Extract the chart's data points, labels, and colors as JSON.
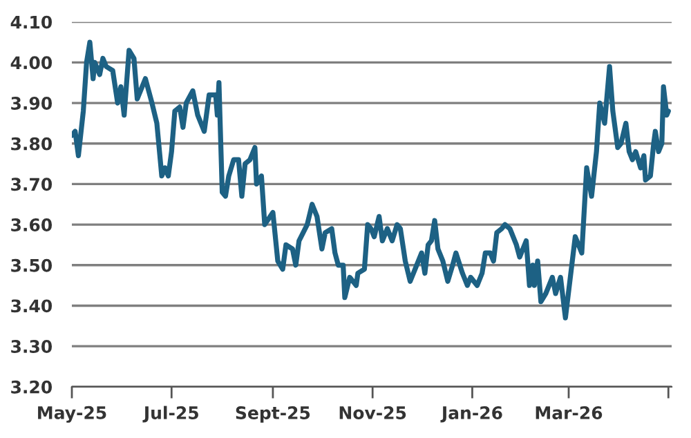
{
  "chart_data": {
    "type": "line",
    "x": [
      "2025-05-01",
      "2025-05-03",
      "2025-05-05",
      "2025-05-08",
      "2025-05-10",
      "2025-05-12",
      "2025-05-14",
      "2025-05-15",
      "2025-05-18",
      "2025-05-20",
      "2025-05-22",
      "2025-05-26",
      "2025-05-29",
      "2025-05-31",
      "2025-06-02",
      "2025-06-05",
      "2025-06-08",
      "2025-06-10",
      "2025-06-15",
      "2025-06-19",
      "2025-06-22",
      "2025-06-25",
      "2025-06-27",
      "2025-06-29",
      "2025-07-01",
      "2025-07-03",
      "2025-07-06",
      "2025-07-08",
      "2025-07-10",
      "2025-07-14",
      "2025-07-17",
      "2025-07-21",
      "2025-07-24",
      "2025-07-28",
      "2025-07-29",
      "2025-07-30",
      "2025-08-01",
      "2025-08-03",
      "2025-08-05",
      "2025-08-08",
      "2025-08-11",
      "2025-08-13",
      "2025-08-15",
      "2025-08-18",
      "2025-08-21",
      "2025-08-22",
      "2025-08-25",
      "2025-08-27",
      "2025-09-01",
      "2025-09-04",
      "2025-09-07",
      "2025-09-09",
      "2025-09-13",
      "2025-09-15",
      "2025-09-17",
      "2025-09-22",
      "2025-09-25",
      "2025-09-28",
      "2025-10-01",
      "2025-10-03",
      "2025-10-07",
      "2025-10-09",
      "2025-10-11",
      "2025-10-14",
      "2025-10-15",
      "2025-10-18",
      "2025-10-22",
      "2025-10-23",
      "2025-10-27",
      "2025-10-29",
      "2025-10-31",
      "2025-11-02",
      "2025-11-05",
      "2025-11-07",
      "2025-11-10",
      "2025-11-13",
      "2025-11-16",
      "2025-11-18",
      "2025-11-21",
      "2025-11-24",
      "2025-11-27",
      "2025-12-01",
      "2025-12-03",
      "2025-12-05",
      "2025-12-07",
      "2025-12-09",
      "2025-12-11",
      "2025-12-14",
      "2025-12-17",
      "2025-12-20",
      "2025-12-22",
      "2025-12-26",
      "2025-12-29",
      "2025-12-31",
      "2026-01-04",
      "2026-01-07",
      "2026-01-09",
      "2026-01-12",
      "2026-01-14",
      "2026-01-16",
      "2026-01-19",
      "2026-01-21",
      "2026-01-24",
      "2026-01-28",
      "2026-01-30",
      "2026-02-03",
      "2026-02-05",
      "2026-02-07",
      "2026-02-08",
      "2026-02-10",
      "2026-02-12",
      "2026-02-15",
      "2026-02-19",
      "2026-02-21",
      "2026-02-24",
      "2026-02-27",
      "2026-03-05",
      "2026-03-09",
      "2026-03-12",
      "2026-03-15",
      "2026-03-18",
      "2026-03-20",
      "2026-03-23",
      "2026-03-26",
      "2026-03-28",
      "2026-03-31",
      "2026-04-02",
      "2026-04-05",
      "2026-04-07",
      "2026-04-09",
      "2026-04-11",
      "2026-04-14",
      "2026-04-16",
      "2026-04-17",
      "2026-04-20",
      "2026-04-22",
      "2026-04-23",
      "2026-04-25",
      "2026-04-27",
      "2026-04-28",
      "2026-04-30",
      "2026-05-01"
    ],
    "series": [
      {
        "color": "#1d6184",
        "values": [
          3.82,
          3.83,
          3.77,
          3.88,
          4.0,
          4.05,
          3.96,
          4.0,
          3.97,
          4.01,
          3.99,
          3.98,
          3.9,
          3.94,
          3.87,
          4.03,
          4.01,
          3.91,
          3.96,
          3.9,
          3.85,
          3.72,
          3.74,
          3.72,
          3.78,
          3.88,
          3.89,
          3.84,
          3.9,
          3.93,
          3.87,
          3.83,
          3.92,
          3.92,
          3.87,
          3.95,
          3.68,
          3.67,
          3.72,
          3.76,
          3.76,
          3.67,
          3.75,
          3.76,
          3.79,
          3.7,
          3.72,
          3.6,
          3.63,
          3.51,
          3.49,
          3.55,
          3.54,
          3.5,
          3.56,
          3.6,
          3.65,
          3.62,
          3.54,
          3.58,
          3.59,
          3.53,
          3.5,
          3.5,
          3.42,
          3.47,
          3.45,
          3.48,
          3.49,
          3.6,
          3.59,
          3.57,
          3.62,
          3.56,
          3.59,
          3.56,
          3.6,
          3.59,
          3.51,
          3.46,
          3.49,
          3.53,
          3.48,
          3.55,
          3.56,
          3.61,
          3.54,
          3.51,
          3.46,
          3.5,
          3.53,
          3.48,
          3.45,
          3.47,
          3.45,
          3.48,
          3.53,
          3.53,
          3.51,
          3.58,
          3.59,
          3.6,
          3.59,
          3.55,
          3.52,
          3.56,
          3.45,
          3.5,
          3.45,
          3.51,
          3.41,
          3.43,
          3.47,
          3.43,
          3.47,
          3.37,
          3.57,
          3.53,
          3.74,
          3.67,
          3.78,
          3.9,
          3.85,
          3.99,
          3.88,
          3.79,
          3.8,
          3.85,
          3.78,
          3.76,
          3.78,
          3.74,
          3.77,
          3.71,
          3.72,
          3.8,
          3.83,
          3.78,
          3.8,
          3.94,
          3.87,
          3.88
        ]
      }
    ],
    "xlim": [
      "2025-05-01",
      "2026-05-03"
    ],
    "xticks": [
      {
        "value": "2025-05-01",
        "label": "May-25"
      },
      {
        "value": "2025-07-01",
        "label": "Jul-25"
      },
      {
        "value": "2025-09-01",
        "label": "Sept-25"
      },
      {
        "value": "2025-11-01",
        "label": "Nov-25"
      },
      {
        "value": "2026-01-01",
        "label": "Jan-26"
      },
      {
        "value": "2026-03-01",
        "label": "Mar-26"
      },
      {
        "value": "2026-05-01",
        "label": null
      }
    ],
    "ylim": [
      3.2,
      4.1
    ],
    "yticks": [
      {
        "value": 3.2,
        "label": "3.20"
      },
      {
        "value": 3.3,
        "label": "3.30"
      },
      {
        "value": 3.4,
        "label": "3.40"
      },
      {
        "value": 3.5,
        "label": "3.50"
      },
      {
        "value": 3.6,
        "label": "3.60"
      },
      {
        "value": 3.7,
        "label": "3.70"
      },
      {
        "value": 3.8,
        "label": "3.80"
      },
      {
        "value": 3.9,
        "label": "3.90"
      },
      {
        "value": 4.0,
        "label": "4.00"
      },
      {
        "value": 4.1,
        "label": "4.10"
      }
    ],
    "grid": "y",
    "legend": false,
    "marker": "none",
    "line_style": "solid"
  }
}
